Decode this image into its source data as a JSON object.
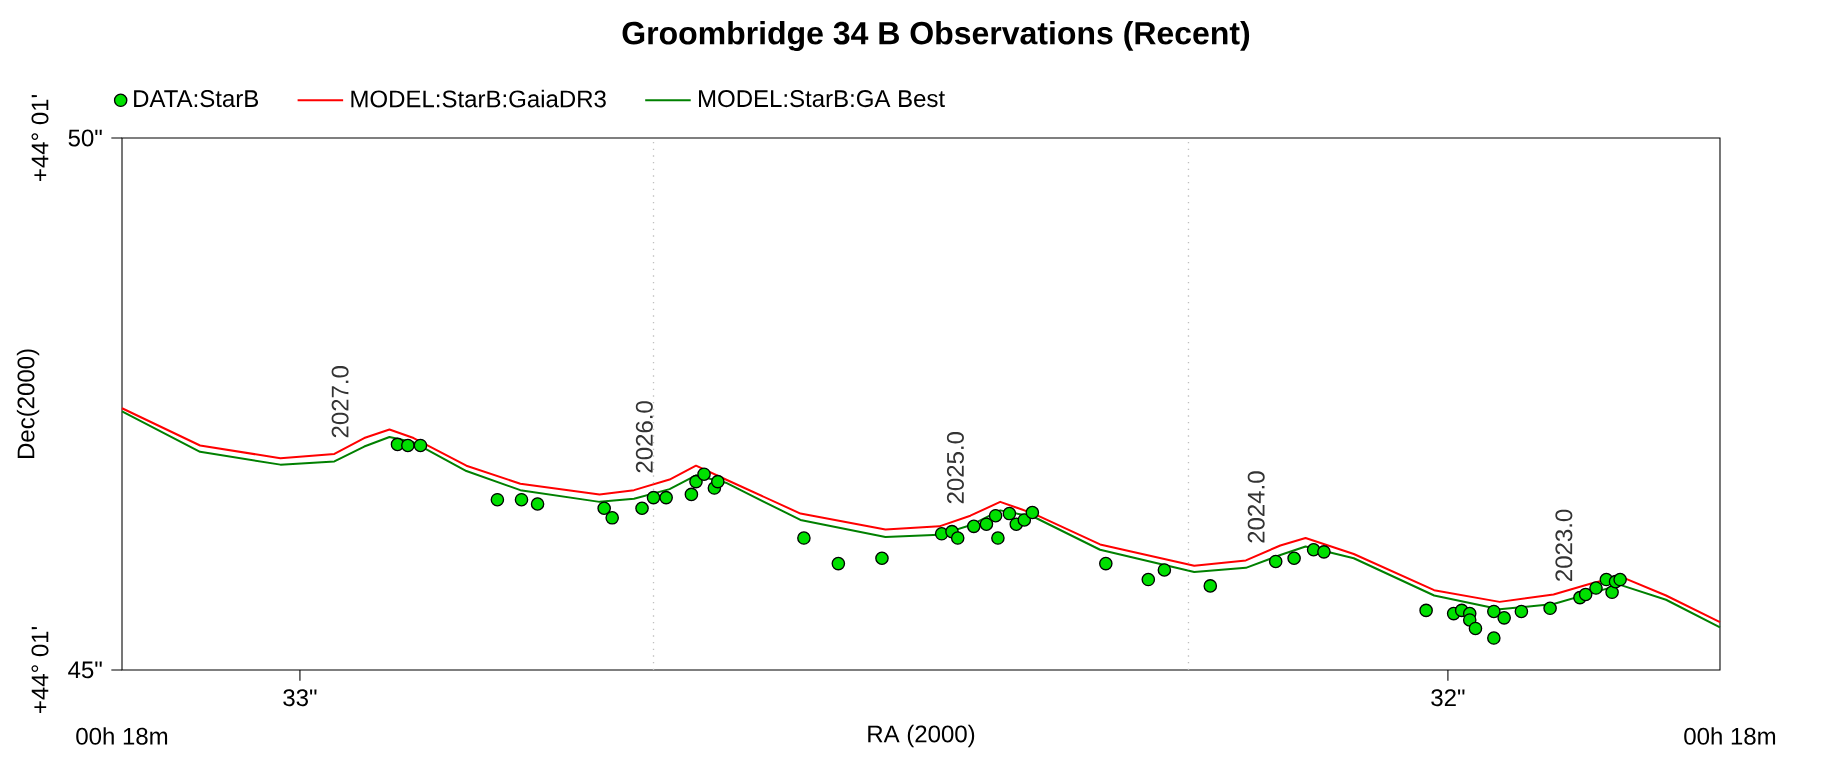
{
  "chart_data": {
    "type": "line",
    "title": "Groombridge 34 B Observations (Recent)",
    "xlabel": "RA (2000)",
    "ylabel": "Dec(2000)",
    "xlim": [
      33.155,
      31.763
    ],
    "xticks": [
      {
        "value": 33,
        "label": "33\""
      },
      {
        "value": 32,
        "label": "32\""
      }
    ],
    "ylim": [
      45,
      50
    ],
    "yticks": [
      {
        "value": 45,
        "label": "45\""
      },
      {
        "value": 50,
        "label": "50\""
      }
    ],
    "legend": "top left",
    "series": [
      {
        "name": "DATA:StarB",
        "type": "scatter",
        "marker": "circle",
        "color": "#00e000",
        "x": [
          32.915,
          32.906,
          32.895,
          32.828,
          32.807,
          32.793,
          32.735,
          32.728,
          32.702,
          32.692,
          32.681,
          32.659,
          32.655,
          32.648,
          32.639,
          32.636,
          32.561,
          32.531,
          32.493,
          32.441,
          32.432,
          32.427,
          32.413,
          32.402,
          32.394,
          32.392,
          32.382,
          32.376,
          32.369,
          32.362,
          32.298,
          32.261,
          32.247,
          32.207,
          32.15,
          32.134,
          32.117,
          32.108,
          32.019,
          31.995,
          31.988,
          31.981,
          31.981,
          31.976,
          31.96,
          31.96,
          31.951,
          31.936,
          31.911,
          31.885,
          31.88,
          31.871,
          31.862,
          31.857,
          31.854,
          31.85
        ],
        "values": [
          47.12,
          47.11,
          47.11,
          46.6,
          46.6,
          46.56,
          46.52,
          46.43,
          46.52,
          46.62,
          46.62,
          46.65,
          46.77,
          46.84,
          46.71,
          46.77,
          46.24,
          46.0,
          46.05,
          46.28,
          46.3,
          46.24,
          46.35,
          46.37,
          46.45,
          46.24,
          46.47,
          46.37,
          46.41,
          46.48,
          46.0,
          45.85,
          45.94,
          45.79,
          46.02,
          46.05,
          46.13,
          46.11,
          45.56,
          45.53,
          45.56,
          45.53,
          45.47,
          45.39,
          45.55,
          45.3,
          45.49,
          45.55,
          45.58,
          45.68,
          45.71,
          45.77,
          45.85,
          45.73,
          45.83,
          45.85
        ]
      },
      {
        "name": "MODEL:StarB:GaiaDR3",
        "marker": "none",
        "line_style": "solid",
        "color": "#ff0000",
        "x": [
          33.155,
          33.087,
          33.017,
          32.97,
          32.944,
          32.922,
          32.901,
          32.855,
          32.808,
          32.739,
          32.709,
          32.678,
          32.655,
          32.629,
          32.564,
          32.49,
          32.443,
          32.416,
          32.39,
          32.361,
          32.303,
          32.221,
          32.176,
          32.146,
          32.124,
          32.082,
          32.012,
          31.955,
          31.908,
          31.876,
          31.85,
          31.81,
          31.763
        ],
        "values": [
          47.46,
          47.11,
          46.99,
          47.03,
          47.18,
          47.26,
          47.18,
          46.92,
          46.75,
          46.65,
          46.69,
          46.79,
          46.92,
          46.79,
          46.47,
          46.32,
          46.35,
          46.45,
          46.58,
          46.47,
          46.18,
          45.98,
          46.03,
          46.17,
          46.24,
          46.09,
          45.75,
          45.64,
          45.71,
          45.81,
          45.88,
          45.7,
          45.45
        ]
      },
      {
        "name": "MODEL:StarB:GA Best",
        "marker": "none",
        "line_style": "solid",
        "color": "#008000",
        "x": [
          33.155,
          33.087,
          33.017,
          32.97,
          32.944,
          32.922,
          32.901,
          32.855,
          32.808,
          32.739,
          32.709,
          32.678,
          32.655,
          32.629,
          32.564,
          32.49,
          32.443,
          32.416,
          32.39,
          32.361,
          32.303,
          32.221,
          32.176,
          32.146,
          32.124,
          32.082,
          32.012,
          31.955,
          31.908,
          31.876,
          31.85,
          31.81,
          31.763
        ],
        "values": [
          47.43,
          47.05,
          46.93,
          46.96,
          47.1,
          47.19,
          47.14,
          46.87,
          46.69,
          46.58,
          46.61,
          46.7,
          46.83,
          46.76,
          46.41,
          46.25,
          46.27,
          46.36,
          46.5,
          46.44,
          46.13,
          45.92,
          45.96,
          46.08,
          46.16,
          46.05,
          45.7,
          45.57,
          45.62,
          45.72,
          45.8,
          45.66,
          45.4
        ]
      }
    ],
    "ref_lines": [
      {
        "axis": "x",
        "value": 32.692,
        "color": "#c0c0c0",
        "line_style": "dotted"
      },
      {
        "axis": "x",
        "value": 32.226,
        "color": "#c0c0c0",
        "line_style": "dotted"
      }
    ],
    "annotations": [
      "+44° 01'",
      "+44° 01'",
      "00h 18m",
      "00h 18m",
      {
        "text": "2027.0",
        "x": 32.965,
        "y": 46.97
      },
      {
        "text": "2026.0",
        "x": 32.7,
        "y": 46.64
      },
      {
        "text": "2025.0",
        "x": 32.429,
        "y": 46.35
      },
      {
        "text": "2024.0",
        "x": 32.167,
        "y": 45.98
      },
      {
        "text": "2023.0",
        "x": 31.899,
        "y": 45.62
      }
    ]
  }
}
